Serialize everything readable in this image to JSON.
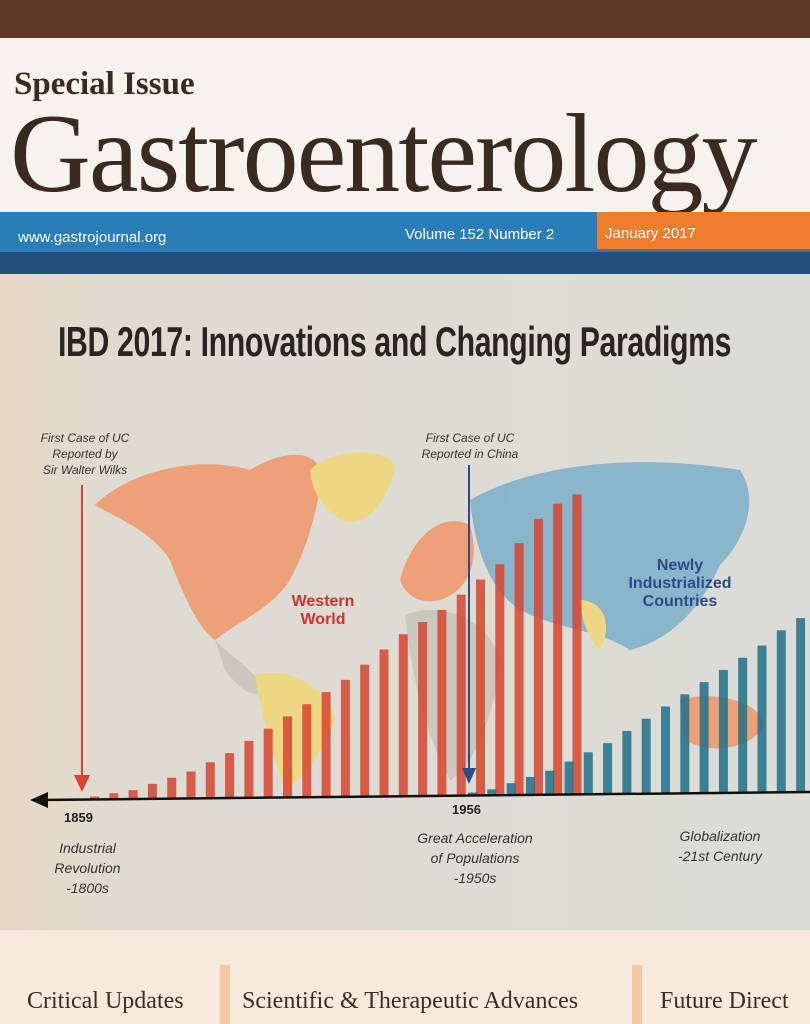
{
  "cover": {
    "special_issue": "Special Issue",
    "journal": "Gastroenterology",
    "url": "www.gastrojournal.org",
    "volume": "Volume 152  Number 2",
    "date": "January 2017"
  },
  "illustration": {
    "headline": "IBD 2017: Innovations and Changing Paradigms",
    "note_left": [
      "First Case of UC",
      "Reported by",
      "Sir Walter Wilks"
    ],
    "note_center": [
      "First Case of UC",
      "Reported in China"
    ],
    "region_western": [
      "Western",
      "World"
    ],
    "region_newly": [
      "Newly",
      "Industrialized",
      "Countries"
    ],
    "year_left": "1859",
    "year_center": "1956",
    "era_left": [
      "Industrial",
      "Revolution",
      "-1800s"
    ],
    "era_center": [
      "Great Acceleration",
      "of Populations",
      "-1950s"
    ],
    "era_right": [
      "Globalization",
      "-21st Century"
    ],
    "colors": {
      "western": "#d9432f",
      "newly": "#1f7088",
      "western_map": "#ef9a6e",
      "newly_map": "#7fb1c9",
      "yellow_map": "#f0d77a"
    },
    "western_bars_relative": [
      0.01,
      0.02,
      0.03,
      0.05,
      0.07,
      0.09,
      0.12,
      0.15,
      0.19,
      0.23,
      0.27,
      0.31,
      0.35,
      0.39,
      0.44,
      0.49,
      0.54,
      0.58,
      0.62,
      0.67,
      0.72,
      0.77,
      0.84,
      0.92,
      0.97,
      1.0
    ],
    "newly_bars_relative": [
      0.01,
      0.02,
      0.04,
      0.06,
      0.08,
      0.11,
      0.14,
      0.17,
      0.21,
      0.25,
      0.29,
      0.33,
      0.37,
      0.41,
      0.45,
      0.49,
      0.54,
      0.58,
      0.6
    ]
  },
  "sections": [
    "Critical Updates",
    "Scientific & Therapeutic Advances",
    "Future Direct"
  ]
}
